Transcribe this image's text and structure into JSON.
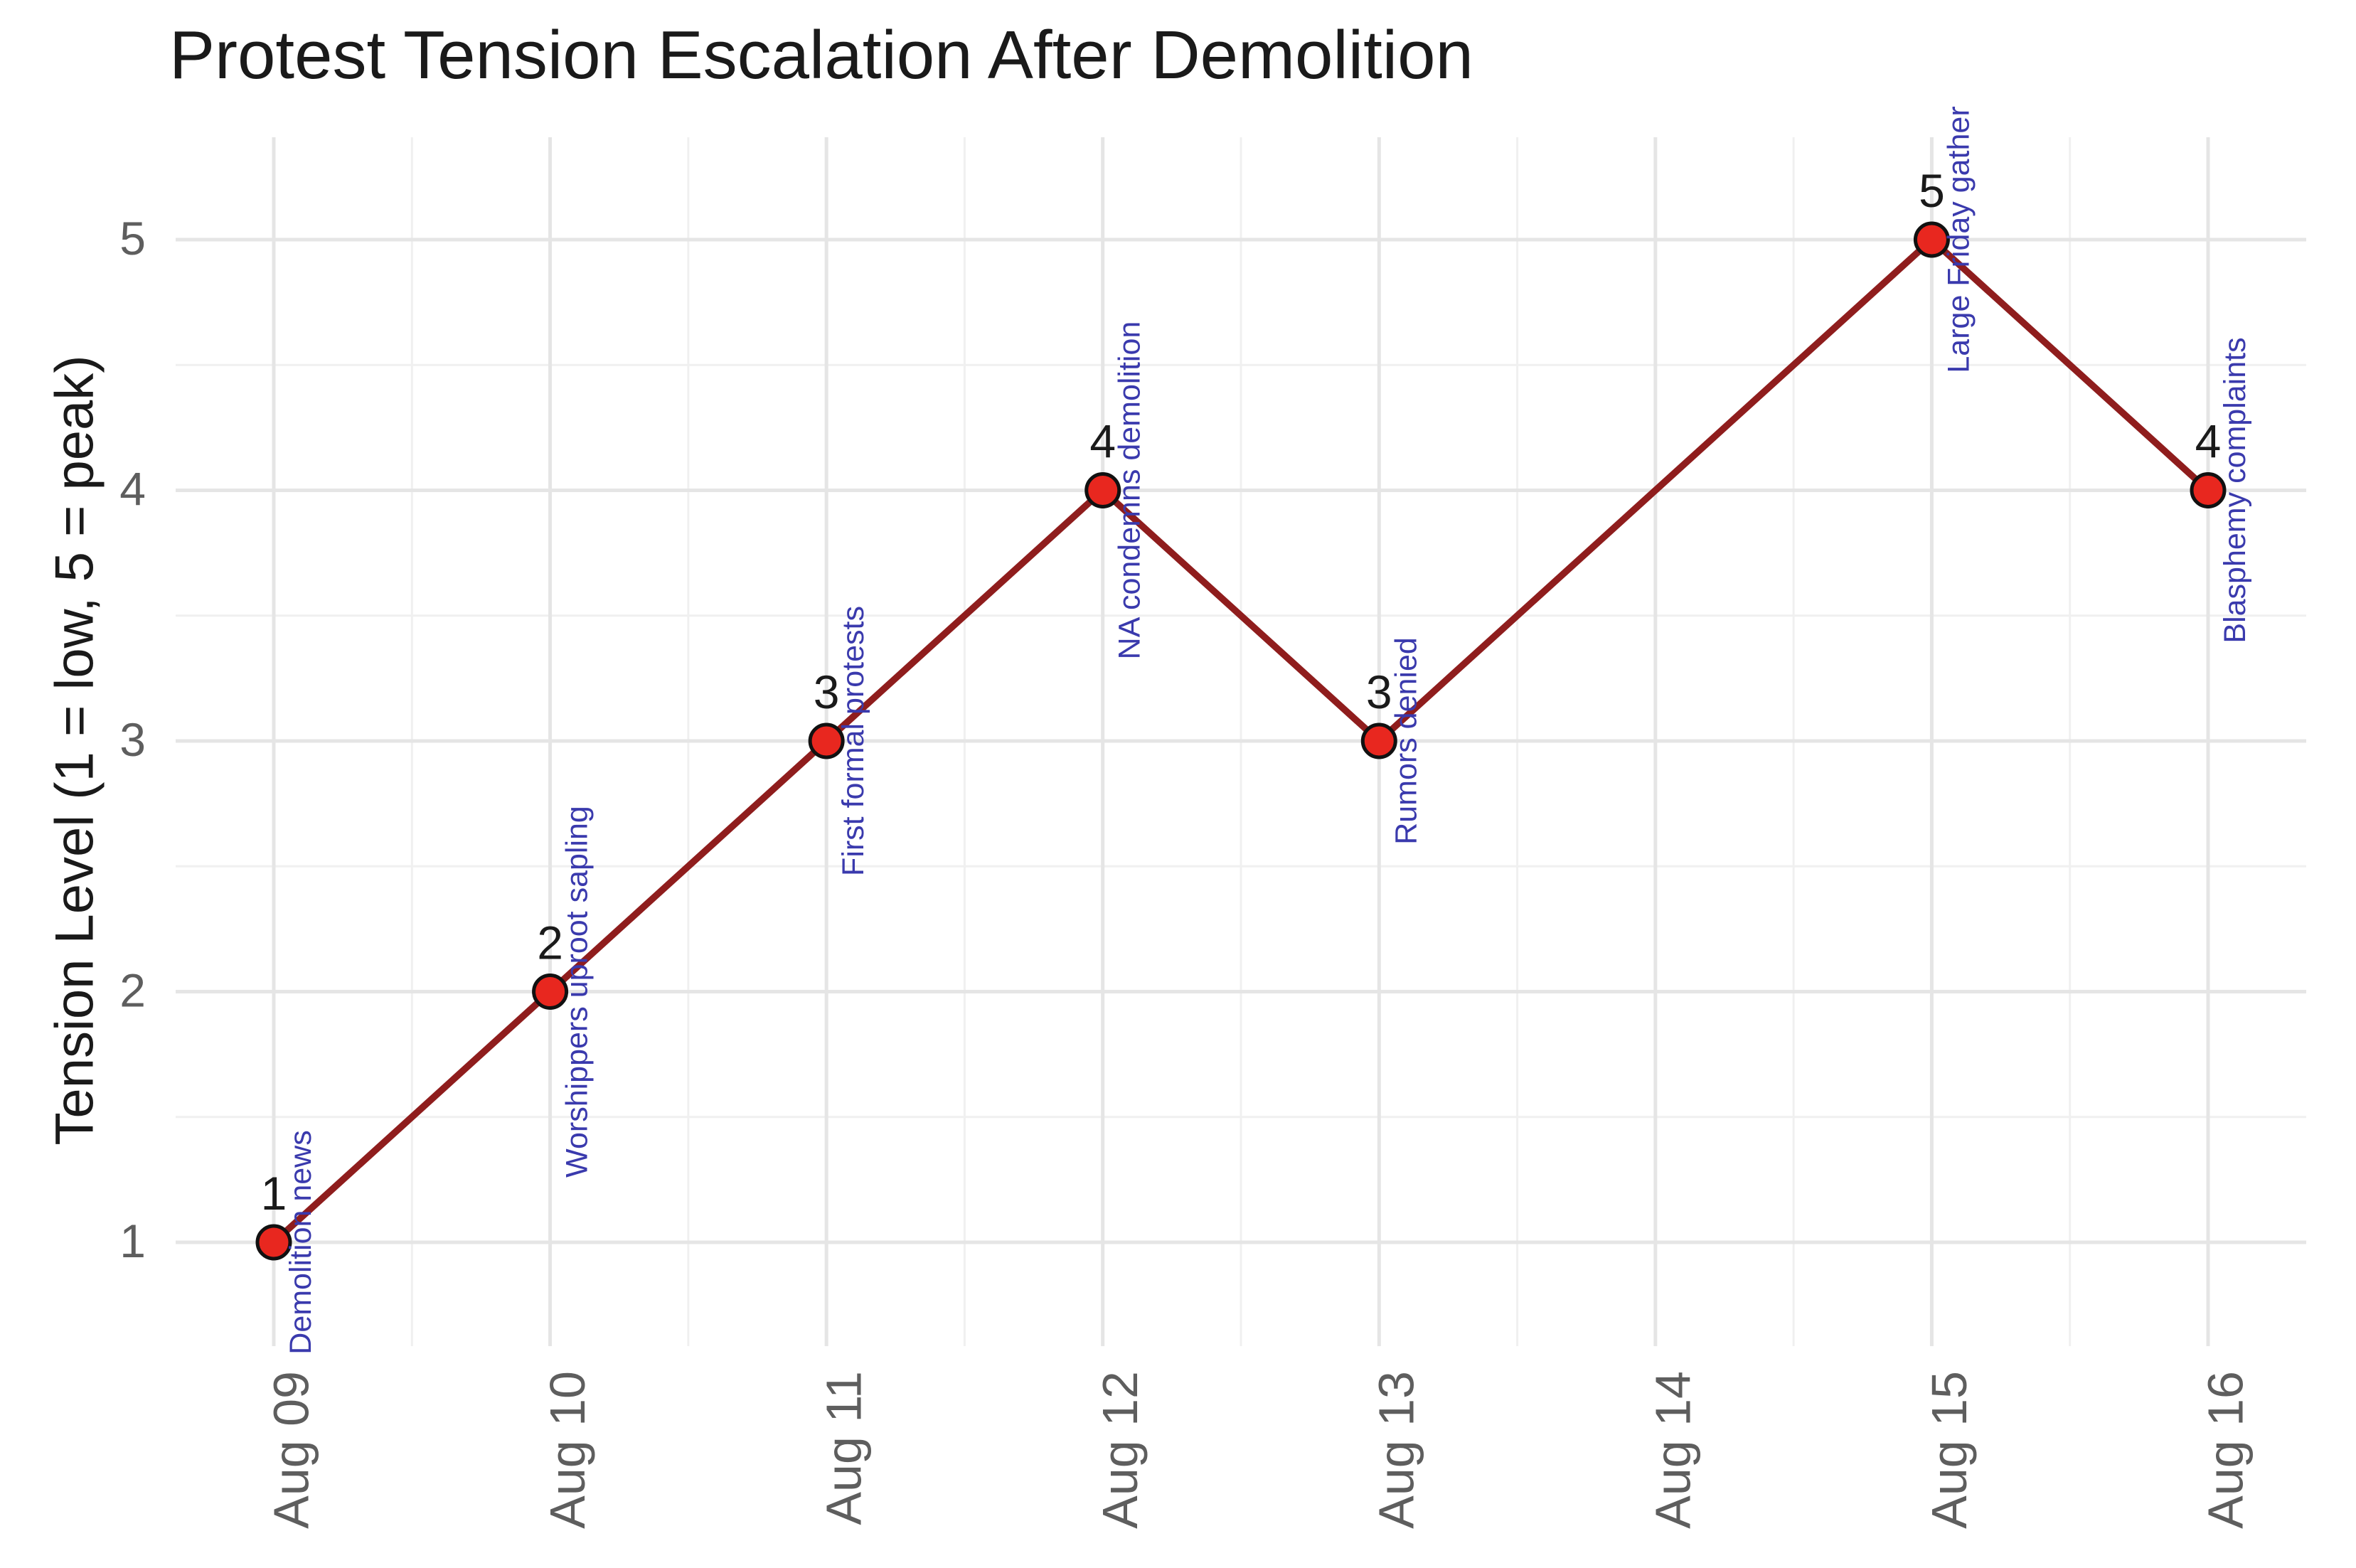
{
  "chart_data": {
    "type": "line",
    "title": "Protest Tension Escalation After Demolition",
    "xlabel": "",
    "ylabel": "Tension Level (1 = low, 5 = peak)",
    "x_categories": [
      "Aug 09",
      "Aug 10",
      "Aug 11",
      "Aug 12",
      "Aug 13",
      "Aug 14",
      "Aug 15",
      "Aug 16"
    ],
    "y_ticks": [
      "1",
      "2",
      "3",
      "4",
      "5"
    ],
    "ylim": [
      0.6,
      5.4
    ],
    "grid": "major-and-minor-light-gray",
    "legend_position": "none",
    "points": [
      {
        "date": "Aug 09",
        "value": 1,
        "annotation": "Demolition news"
      },
      {
        "date": "Aug 10",
        "value": 2,
        "annotation": "Worshippers uproot sapling"
      },
      {
        "date": "Aug 11",
        "value": 3,
        "annotation": "First formal protests"
      },
      {
        "date": "Aug 12",
        "value": 4,
        "annotation": "NA condemns demolition"
      },
      {
        "date": "Aug 13",
        "value": 3,
        "annotation": "Rumors denied"
      },
      {
        "date": "Aug 15",
        "value": 5,
        "annotation": "Large Friday gather"
      },
      {
        "date": "Aug 16",
        "value": 4,
        "annotation": "Blasphemy complaints"
      }
    ],
    "colors": {
      "line": "#8f1d1d",
      "point_fill": "#e8271f",
      "point_stroke": "#111111",
      "annotation_text": "#3a3aad",
      "axis_tick_text": "#5e5e5e",
      "grid_major": "#e5e5e5",
      "grid_minor": "#f0f0f0",
      "title_text": "#1a1a1a"
    }
  }
}
